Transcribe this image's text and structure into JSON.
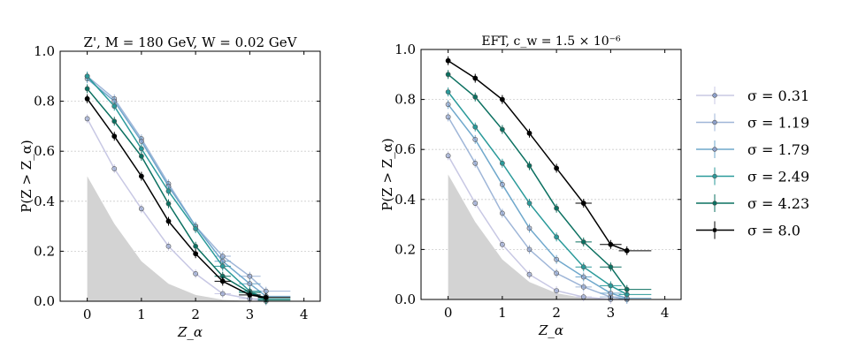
{
  "chart_data": [
    {
      "type": "line",
      "title": "Z', M = 180 GeV, W = 0.02 GeV",
      "xlabel": "Z_α",
      "ylabel": "P(Z > Z_α)",
      "xlim": [
        -0.5,
        4.3
      ],
      "ylim": [
        0,
        1.0
      ],
      "xticks": [
        "0",
        "1",
        "2",
        "3",
        "4"
      ],
      "yticks": [
        "0.0",
        "0.2",
        "0.4",
        "0.6",
        "0.8",
        "1.0"
      ],
      "grid": "horizontal dotted",
      "x": [
        0,
        0.5,
        1,
        1.5,
        2,
        2.5,
        3,
        3.3
      ],
      "shaded_reference": {
        "x": [
          0,
          0.5,
          1,
          1.5,
          2,
          2.5,
          3,
          3.3
        ],
        "y": [
          0.5,
          0.31,
          0.16,
          0.07,
          0.025,
          0.006,
          0.001,
          0.0
        ]
      },
      "series": [
        {
          "name": "σ = 0.31",
          "color": "#c8c8e4",
          "y": [
            0.73,
            0.53,
            0.37,
            0.22,
            0.11,
            0.03,
            0.01,
            0.0
          ]
        },
        {
          "name": "σ = 1.19",
          "color": "#9fb6d8",
          "y": [
            0.9,
            0.81,
            0.65,
            0.47,
            0.3,
            0.18,
            0.1,
            0.04
          ]
        },
        {
          "name": "σ = 1.79",
          "color": "#6fa8cc",
          "y": [
            0.89,
            0.8,
            0.64,
            0.46,
            0.3,
            0.16,
            0.07,
            0.02
          ]
        },
        {
          "name": "σ = 2.49",
          "color": "#2a9a9a",
          "y": [
            0.9,
            0.78,
            0.61,
            0.44,
            0.29,
            0.14,
            0.04,
            0.01
          ]
        },
        {
          "name": "σ = 4.23",
          "color": "#0b7060",
          "y": [
            0.85,
            0.72,
            0.58,
            0.39,
            0.22,
            0.1,
            0.035,
            0.005
          ]
        },
        {
          "name": "σ = 8.0",
          "color": "#000000",
          "y": [
            0.81,
            0.66,
            0.5,
            0.32,
            0.19,
            0.08,
            0.025,
            0.015
          ]
        }
      ]
    },
    {
      "type": "line",
      "title": "EFT, c_w = 1.5 × 10⁻⁶",
      "xlabel": "Z_α",
      "ylabel": "P(Z > Z_α)",
      "xlim": [
        -0.5,
        4.3
      ],
      "ylim": [
        0,
        1.0
      ],
      "xticks": [
        "0",
        "1",
        "2",
        "3",
        "4"
      ],
      "yticks": [
        "0.0",
        "0.2",
        "0.4",
        "0.6",
        "0.8",
        "1.0"
      ],
      "grid": "horizontal dotted",
      "legend": "right, outside",
      "x": [
        0,
        0.5,
        1,
        1.5,
        2,
        2.5,
        3,
        3.3
      ],
      "shaded_reference": {
        "x": [
          0,
          0.5,
          1,
          1.5,
          2,
          2.5,
          3,
          3.3
        ],
        "y": [
          0.5,
          0.31,
          0.16,
          0.07,
          0.025,
          0.006,
          0.001,
          0.0
        ]
      },
      "series": [
        {
          "name": "σ = 0.31",
          "color": "#c8c8e4",
          "y": [
            0.575,
            0.385,
            0.22,
            0.1,
            0.035,
            0.01,
            0.0,
            0.0
          ]
        },
        {
          "name": "σ = 1.19",
          "color": "#9fb6d8",
          "y": [
            0.73,
            0.545,
            0.345,
            0.2,
            0.105,
            0.05,
            0.01,
            0.0
          ]
        },
        {
          "name": "σ = 1.79",
          "color": "#6fa8cc",
          "y": [
            0.78,
            0.64,
            0.46,
            0.285,
            0.16,
            0.09,
            0.025,
            0.005
          ]
        },
        {
          "name": "σ = 2.49",
          "color": "#2a9a9a",
          "y": [
            0.83,
            0.69,
            0.545,
            0.385,
            0.25,
            0.13,
            0.055,
            0.02
          ]
        },
        {
          "name": "σ = 4.23",
          "color": "#0b7060",
          "y": [
            0.9,
            0.81,
            0.68,
            0.535,
            0.365,
            0.23,
            0.13,
            0.04
          ]
        },
        {
          "name": "σ = 8.0",
          "color": "#000000",
          "y": [
            0.955,
            0.885,
            0.8,
            0.665,
            0.525,
            0.385,
            0.22,
            0.195
          ]
        }
      ]
    }
  ]
}
